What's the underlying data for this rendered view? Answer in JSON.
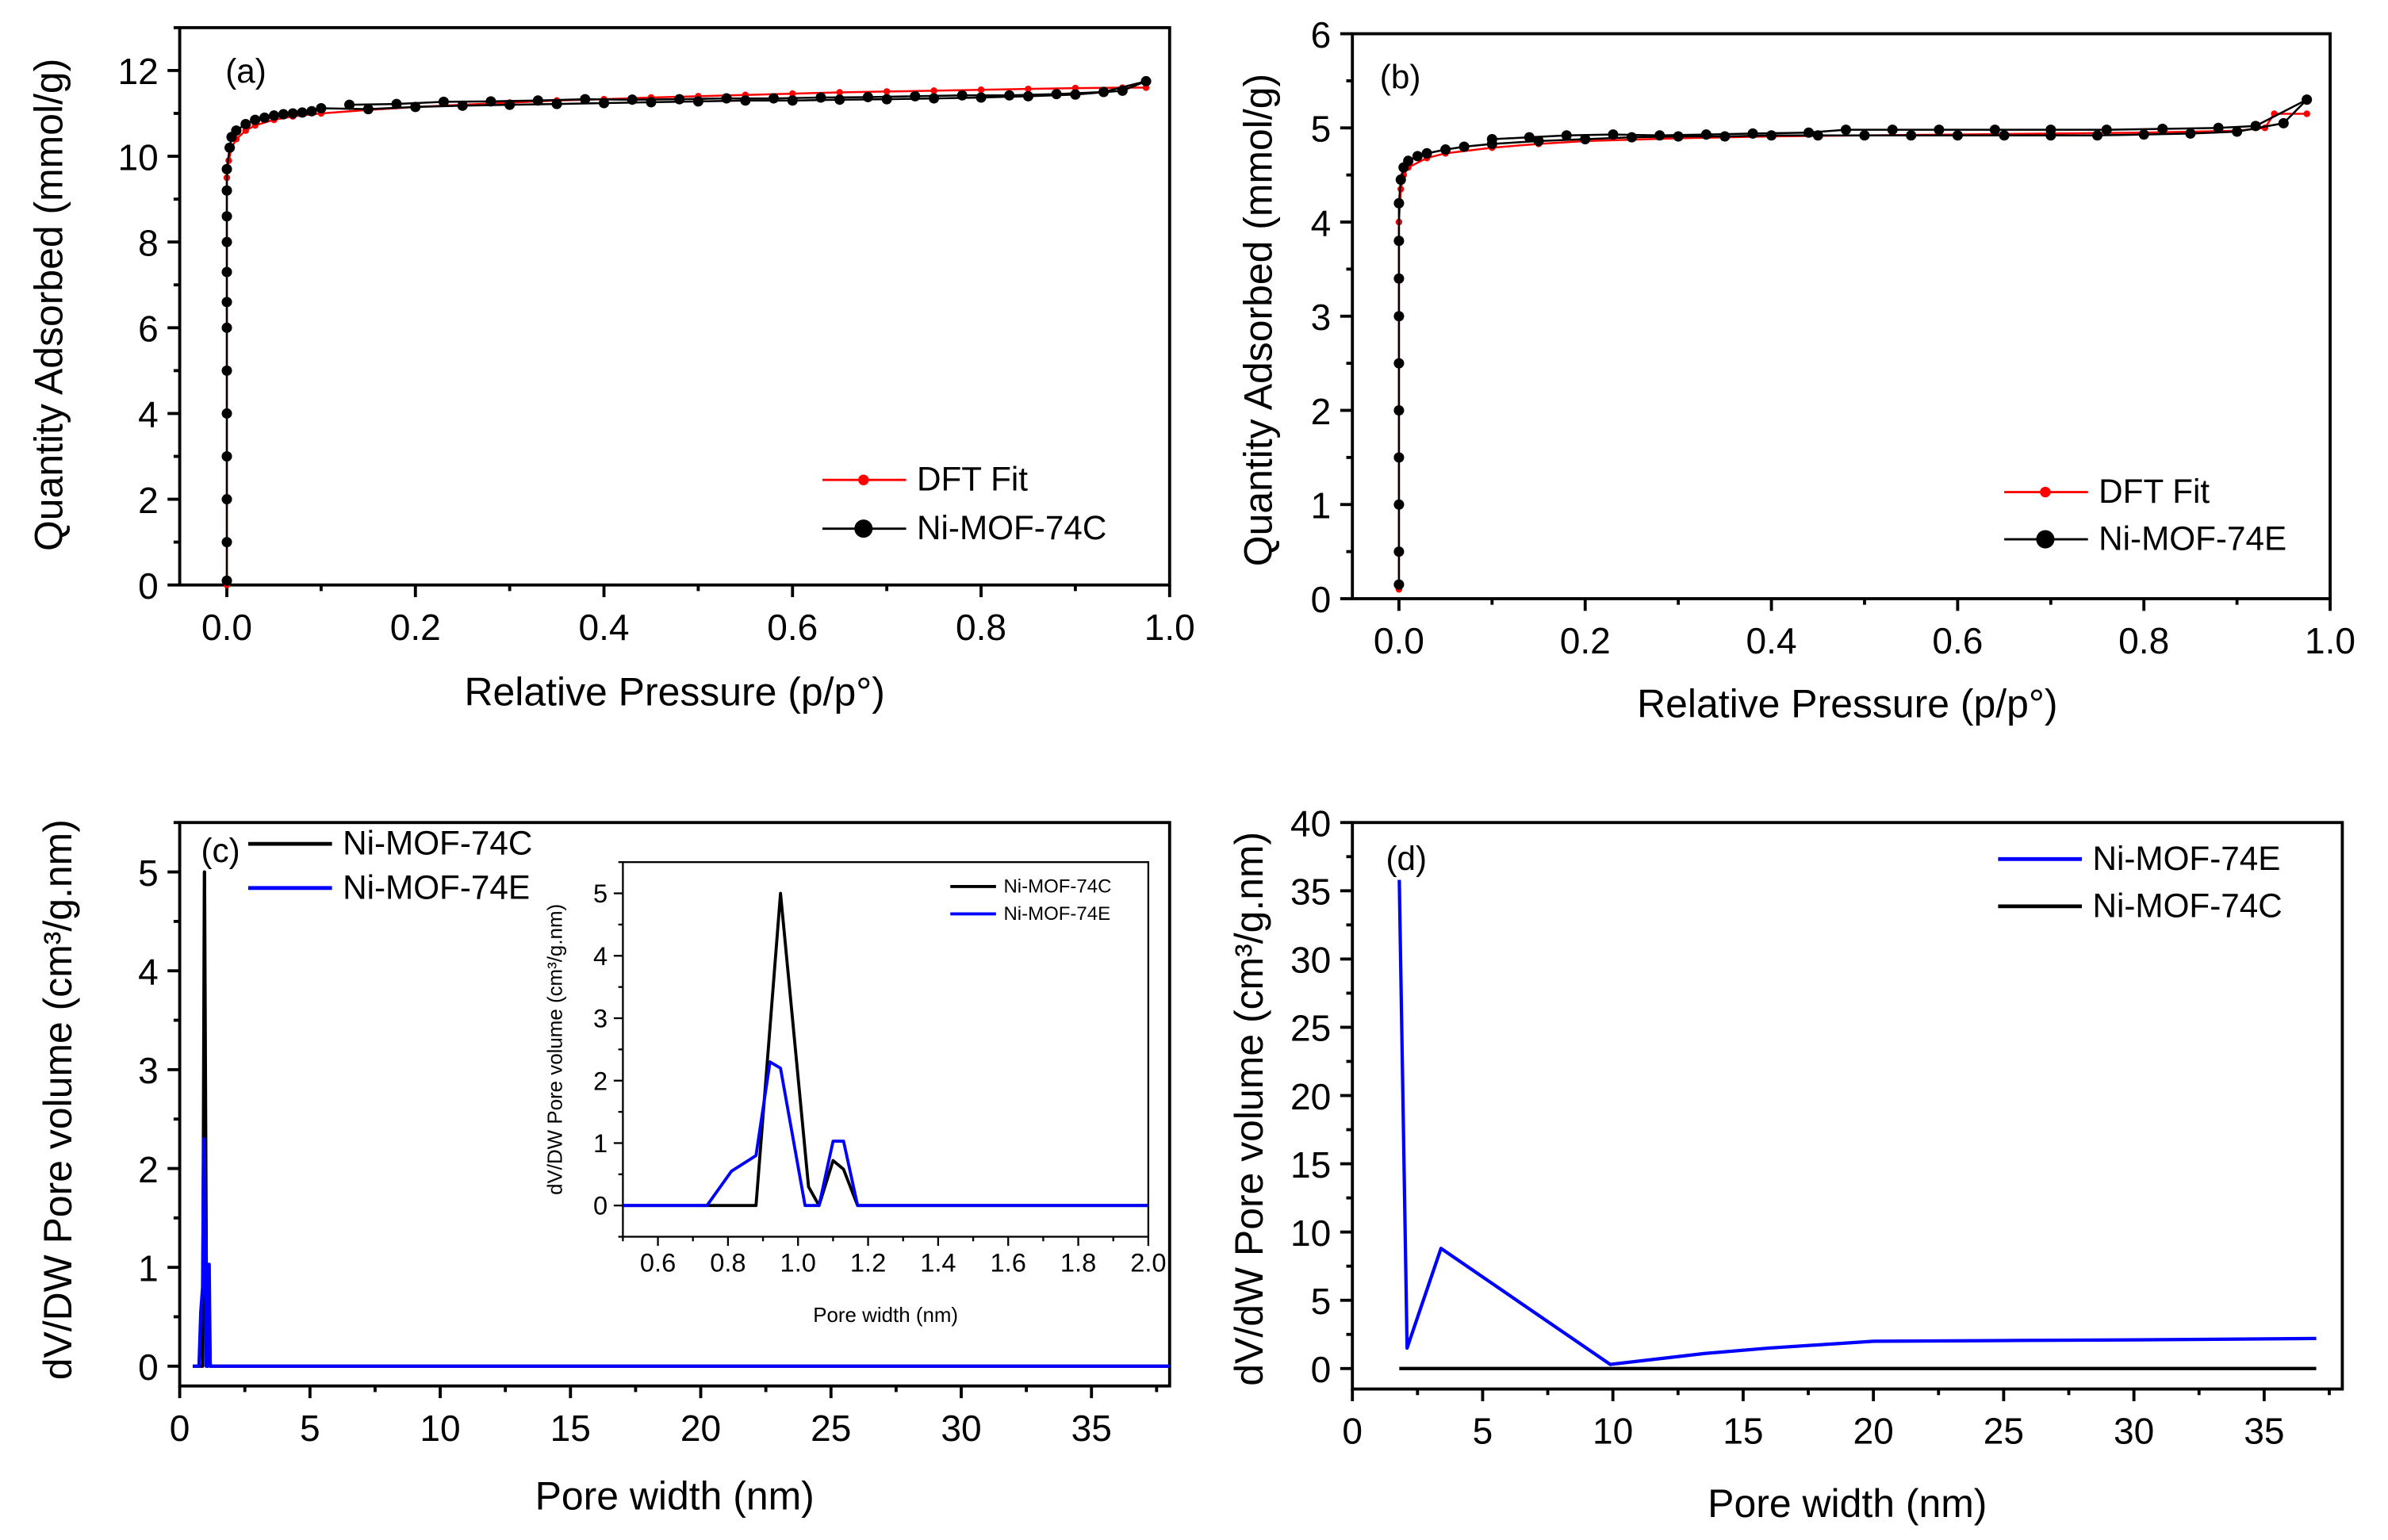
{
  "chart_data": [
    {
      "type": "scatter",
      "panel_label": "(a)",
      "xlabel": "Relative Pressure (p/p°)",
      "ylabel": "Quantity Adsorbed (mmol/g)",
      "xlim": [
        -0.05,
        1.0
      ],
      "ylim": [
        0,
        13
      ],
      "xticks": [
        "0.0",
        "0.2",
        "0.4",
        "0.6",
        "0.8",
        "1.0"
      ],
      "yticks": [
        "0",
        "2",
        "4",
        "6",
        "8",
        "10",
        "12"
      ],
      "legend_placement": "bottom-right",
      "series": [
        {
          "name": "DFT Fit",
          "color": "#ff0000",
          "marker": "small-dot",
          "points": [
            [
              0,
              0
            ],
            [
              0,
              2
            ],
            [
              0,
              4
            ],
            [
              0,
              6
            ],
            [
              0,
              8
            ],
            [
              0,
              9.5
            ],
            [
              0.002,
              9.9
            ],
            [
              0.005,
              10.2
            ],
            [
              0.01,
              10.4
            ],
            [
              0.02,
              10.6
            ],
            [
              0.03,
              10.72
            ],
            [
              0.05,
              10.85
            ],
            [
              0.07,
              10.93
            ],
            [
              0.1,
              11.0
            ],
            [
              0.15,
              11.08
            ],
            [
              0.2,
              11.15
            ],
            [
              0.25,
              11.2
            ],
            [
              0.3,
              11.25
            ],
            [
              0.35,
              11.3
            ],
            [
              0.4,
              11.33
            ],
            [
              0.45,
              11.37
            ],
            [
              0.5,
              11.4
            ],
            [
              0.55,
              11.43
            ],
            [
              0.6,
              11.46
            ],
            [
              0.65,
              11.49
            ],
            [
              0.7,
              11.51
            ],
            [
              0.75,
              11.53
            ],
            [
              0.8,
              11.55
            ],
            [
              0.85,
              11.57
            ],
            [
              0.9,
              11.59
            ],
            [
              0.95,
              11.6
            ],
            [
              0.975,
              11.6
            ]
          ]
        },
        {
          "name": "Ni-MOF-74C",
          "color": "#000000",
          "marker": "dot",
          "points": [
            [
              0,
              0.1
            ],
            [
              0,
              1
            ],
            [
              0,
              2
            ],
            [
              0,
              3
            ],
            [
              0,
              4
            ],
            [
              0,
              5
            ],
            [
              0,
              6
            ],
            [
              0,
              6.6
            ],
            [
              0,
              7.3
            ],
            [
              0,
              8
            ],
            [
              0,
              8.6
            ],
            [
              0,
              9.2
            ],
            [
              0,
              9.7
            ],
            [
              0.003,
              10.2
            ],
            [
              0.005,
              10.45
            ],
            [
              0.01,
              10.6
            ],
            [
              0.02,
              10.75
            ],
            [
              0.03,
              10.85
            ],
            [
              0.04,
              10.9
            ],
            [
              0.05,
              10.95
            ],
            [
              0.06,
              10.98
            ],
            [
              0.07,
              11.0
            ],
            [
              0.08,
              11.02
            ],
            [
              0.09,
              11.05
            ],
            [
              0.1,
              11.12
            ],
            [
              0.15,
              11.1
            ],
            [
              0.2,
              11.15
            ],
            [
              0.25,
              11.18
            ],
            [
              0.3,
              11.2
            ],
            [
              0.35,
              11.22
            ],
            [
              0.4,
              11.24
            ],
            [
              0.45,
              11.26
            ],
            [
              0.5,
              11.28
            ],
            [
              0.55,
              11.3
            ],
            [
              0.6,
              11.3
            ],
            [
              0.65,
              11.32
            ],
            [
              0.7,
              11.33
            ],
            [
              0.75,
              11.35
            ],
            [
              0.8,
              11.37
            ],
            [
              0.85,
              11.4
            ],
            [
              0.9,
              11.44
            ],
            [
              0.95,
              11.53
            ],
            [
              0.975,
              11.75
            ],
            [
              0.93,
              11.5
            ],
            [
              0.88,
              11.45
            ],
            [
              0.83,
              11.42
            ],
            [
              0.78,
              11.42
            ],
            [
              0.73,
              11.4
            ],
            [
              0.68,
              11.38
            ],
            [
              0.63,
              11.37
            ],
            [
              0.58,
              11.35
            ],
            [
              0.53,
              11.35
            ],
            [
              0.48,
              11.33
            ],
            [
              0.43,
              11.32
            ],
            [
              0.38,
              11.33
            ],
            [
              0.33,
              11.3
            ],
            [
              0.28,
              11.28
            ],
            [
              0.23,
              11.27
            ],
            [
              0.18,
              11.22
            ],
            [
              0.13,
              11.2
            ]
          ]
        }
      ]
    },
    {
      "type": "scatter",
      "panel_label": "(b)",
      "xlabel": "Relative Pressure (p/p°)",
      "ylabel": "Quantity Adsorbed (mmol/g)",
      "xlim": [
        -0.05,
        1.0
      ],
      "ylim": [
        0,
        6
      ],
      "xticks": [
        "0.0",
        "0.2",
        "0.4",
        "0.6",
        "0.8",
        "1.0"
      ],
      "yticks": [
        "0",
        "1",
        "2",
        "3",
        "4",
        "5",
        "6"
      ],
      "legend_placement": "bottom-right",
      "series": [
        {
          "name": "DFT Fit",
          "color": "#ff0000",
          "marker": "small-dot",
          "points": [
            [
              0,
              0.1
            ],
            [
              0,
              1
            ],
            [
              0,
              2
            ],
            [
              0,
              3
            ],
            [
              0,
              4
            ],
            [
              0.002,
              4.35
            ],
            [
              0.005,
              4.5
            ],
            [
              0.01,
              4.58
            ],
            [
              0.03,
              4.68
            ],
            [
              0.05,
              4.73
            ],
            [
              0.1,
              4.79
            ],
            [
              0.15,
              4.83
            ],
            [
              0.2,
              4.86
            ],
            [
              0.3,
              4.89
            ],
            [
              0.4,
              4.91
            ],
            [
              0.5,
              4.92
            ],
            [
              0.6,
              4.93
            ],
            [
              0.7,
              4.94
            ],
            [
              0.8,
              4.95
            ],
            [
              0.9,
              4.97
            ],
            [
              0.93,
              5.0
            ],
            [
              0.94,
              5.15
            ],
            [
              0.975,
              5.15
            ]
          ]
        },
        {
          "name": "Ni-MOF-74E",
          "color": "#000000",
          "marker": "dot",
          "points": [
            [
              0,
              0.15
            ],
            [
              0,
              0.5
            ],
            [
              0,
              1
            ],
            [
              0,
              1.5
            ],
            [
              0,
              2
            ],
            [
              0,
              2.5
            ],
            [
              0,
              3
            ],
            [
              0,
              3.4
            ],
            [
              0,
              3.8
            ],
            [
              0,
              4.2
            ],
            [
              0.002,
              4.45
            ],
            [
              0.005,
              4.58
            ],
            [
              0.01,
              4.65
            ],
            [
              0.02,
              4.7
            ],
            [
              0.03,
              4.73
            ],
            [
              0.05,
              4.77
            ],
            [
              0.07,
              4.8
            ],
            [
              0.1,
              4.83
            ],
            [
              0.15,
              4.86
            ],
            [
              0.2,
              4.88
            ],
            [
              0.25,
              4.9
            ],
            [
              0.3,
              4.91
            ],
            [
              0.35,
              4.91
            ],
            [
              0.4,
              4.92
            ],
            [
              0.45,
              4.92
            ],
            [
              0.5,
              4.92
            ],
            [
              0.55,
              4.92
            ],
            [
              0.6,
              4.92
            ],
            [
              0.65,
              4.92
            ],
            [
              0.7,
              4.92
            ],
            [
              0.75,
              4.92
            ],
            [
              0.8,
              4.93
            ],
            [
              0.85,
              4.94
            ],
            [
              0.9,
              4.96
            ],
            [
              0.95,
              5.05
            ],
            [
              0.975,
              5.3
            ],
            [
              0.92,
              5.02
            ],
            [
              0.88,
              5.0
            ],
            [
              0.82,
              4.99
            ],
            [
              0.76,
              4.98
            ],
            [
              0.7,
              4.98
            ],
            [
              0.64,
              4.98
            ],
            [
              0.58,
              4.98
            ],
            [
              0.53,
              4.98
            ],
            [
              0.48,
              4.98
            ],
            [
              0.44,
              4.95
            ],
            [
              0.38,
              4.94
            ],
            [
              0.33,
              4.93
            ],
            [
              0.28,
              4.92
            ],
            [
              0.23,
              4.93
            ],
            [
              0.18,
              4.92
            ],
            [
              0.14,
              4.9
            ],
            [
              0.1,
              4.88
            ]
          ]
        }
      ]
    },
    {
      "type": "line",
      "panel_label": "(c)",
      "xlabel": "Pore width (nm)",
      "ylabel": "dV/DW Pore volume (cm³/g.nm)",
      "xlim": [
        0,
        38
      ],
      "ylim": [
        -0.2,
        5.5
      ],
      "xticks": [
        "0",
        "5",
        "10",
        "15",
        "20",
        "25",
        "30",
        "35"
      ],
      "yticks": [
        "0",
        "1",
        "2",
        "3",
        "4",
        "5"
      ],
      "legend_placement": "top-left",
      "series": [
        {
          "name": "Ni-MOF-74C",
          "color": "#000000",
          "points": [
            [
              0.5,
              0
            ],
            [
              0.88,
              0
            ],
            [
              0.95,
              5.0
            ],
            [
              1.03,
              0.3
            ],
            [
              1.06,
              0
            ],
            [
              1.1,
              0.72
            ],
            [
              1.13,
              0.58
            ],
            [
              1.17,
              0
            ],
            [
              38,
              0
            ]
          ]
        },
        {
          "name": "Ni-MOF-74E",
          "color": "#0000ff",
          "points": [
            [
              0.5,
              0
            ],
            [
              0.74,
              0
            ],
            [
              0.81,
              0.55
            ],
            [
              0.88,
              0.8
            ],
            [
              0.92,
              2.3
            ],
            [
              0.95,
              2.2
            ],
            [
              1.02,
              0
            ],
            [
              1.06,
              0
            ],
            [
              1.1,
              1.03
            ],
            [
              1.13,
              1.03
            ],
            [
              1.17,
              0
            ],
            [
              38,
              0
            ]
          ]
        }
      ],
      "inset": {
        "xlabel": "Pore width (nm)",
        "ylabel": "dV/DW Pore volume (cm³/g.nm)",
        "xlim": [
          0.5,
          2.0
        ],
        "ylim": [
          -0.5,
          5.5
        ],
        "xticks": [
          "0.6",
          "0.8",
          "1.0",
          "1.2",
          "1.4",
          "1.6",
          "1.8",
          "2.0"
        ],
        "yticks": [
          "0",
          "1",
          "2",
          "3",
          "4",
          "5"
        ],
        "legend": [
          "Ni-MOF-74C",
          "Ni-MOF-74E"
        ]
      }
    },
    {
      "type": "line",
      "panel_label": "(d)",
      "xlabel": "Pore width (nm)",
      "ylabel": "dV/dW Pore volume (cm³/g.nm)",
      "xlim": [
        0,
        38
      ],
      "ylim": [
        -1.5,
        40
      ],
      "xticks": [
        "0",
        "5",
        "10",
        "15",
        "20",
        "25",
        "30",
        "35"
      ],
      "yticks": [
        "0",
        "5",
        "10",
        "15",
        "20",
        "25",
        "30",
        "35",
        "40"
      ],
      "legend_placement": "top-right",
      "series": [
        {
          "name": "Ni-MOF-74E",
          "color": "#0000ff",
          "points": [
            [
              1.8,
              35.8
            ],
            [
              2.1,
              1.5
            ],
            [
              3.4,
              8.8
            ],
            [
              9.9,
              0.3
            ],
            [
              13.5,
              1.1
            ],
            [
              16,
              1.5
            ],
            [
              20,
              2.0
            ],
            [
              25,
              2.05
            ],
            [
              30,
              2.1
            ],
            [
              37,
              2.2
            ]
          ]
        },
        {
          "name": "Ni-MOF-74C",
          "color": "#000000",
          "points": [
            [
              1.8,
              0
            ],
            [
              37,
              0
            ]
          ]
        }
      ]
    }
  ]
}
